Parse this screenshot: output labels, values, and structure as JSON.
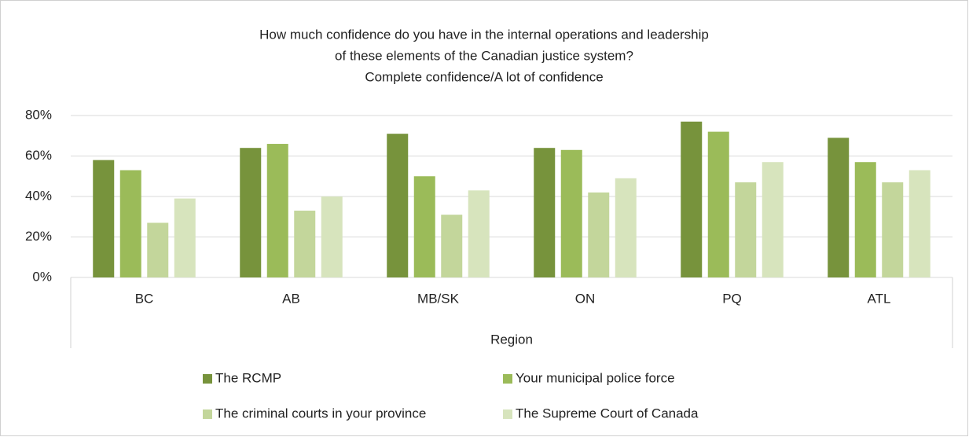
{
  "chart_data": {
    "type": "bar",
    "title": [
      "How much confidence do you have in the internal operations and leadership",
      "of these elements of the Canadian justice system?",
      "Complete confidence/A lot of confidence"
    ],
    "x_label": "Region",
    "categories": [
      "BC",
      "AB",
      "MB/SK",
      "ON",
      "PQ",
      "ATL"
    ],
    "series": [
      {
        "name": "The RCMP",
        "color": "#77933c",
        "values": [
          58,
          64,
          71,
          64,
          77,
          69
        ]
      },
      {
        "name": "Your municipal police force",
        "color": "#9bbb59",
        "values": [
          53,
          66,
          50,
          63,
          72,
          57
        ]
      },
      {
        "name": "The criminal courts in your province",
        "color": "#c3d69b",
        "values": [
          27,
          33,
          31,
          42,
          47,
          47
        ]
      },
      {
        "name": "The Supreme Court of Canada",
        "color": "#d7e4bd",
        "values": [
          39,
          40,
          43,
          49,
          57,
          53
        ]
      }
    ],
    "ylim": [
      0,
      80
    ],
    "yticks": [
      {
        "value": 0,
        "label": "0%"
      },
      {
        "value": 20,
        "label": "20%"
      },
      {
        "value": 40,
        "label": "40%"
      },
      {
        "value": 60,
        "label": "60%"
      },
      {
        "value": 80,
        "label": "80%"
      }
    ],
    "grid": true
  }
}
